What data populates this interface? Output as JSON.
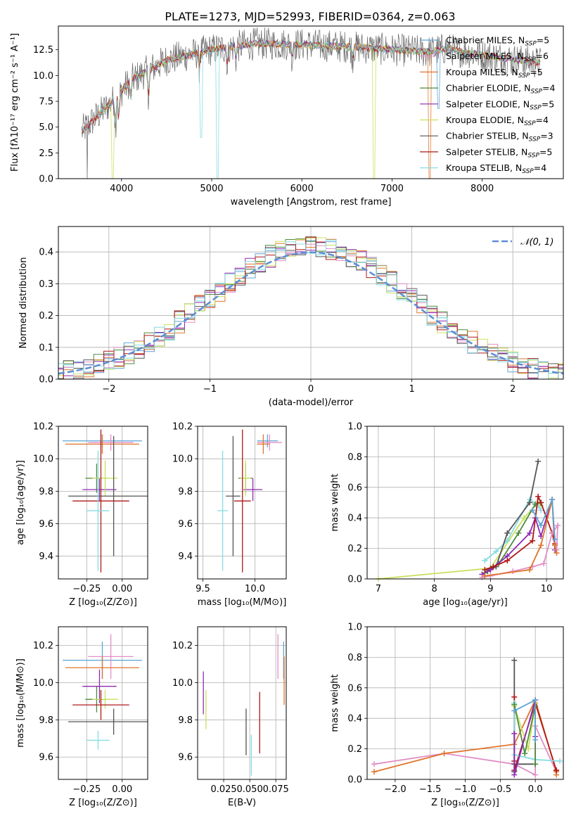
{
  "figure_title": "PLATE=1273, MJD=52993, FIBERID=0364, z=0.063",
  "chart_data": [
    {
      "id": "spectrum",
      "type": "line",
      "xlabel": "wavelength [Angstrom, rest frame]",
      "ylabel": "Flux [fλ10⁻¹⁷ erg cm⁻² s⁻¹ A⁻¹]",
      "xlim": [
        3300,
        8900
      ],
      "ylim": [
        0,
        14.8
      ],
      "xticks": [
        4000,
        5000,
        6000,
        7000,
        8000
      ],
      "xtick_labels": [
        "4000",
        "5000",
        "6000",
        "7000",
        "8000"
      ],
      "yticks": [
        0,
        2.5,
        5,
        7.5,
        10,
        12.5
      ],
      "ytick_labels": [
        "0.0",
        "2.5",
        "5.0",
        "7.5",
        "10.0",
        "12.5"
      ],
      "grid": false,
      "legend_position": "right",
      "continuum": {
        "x": [
          3550,
          3900,
          4100,
          4500,
          5000,
          5500,
          6000,
          6500,
          7000,
          7400,
          7600,
          8000,
          8300,
          8650
        ],
        "y": [
          4.5,
          7.5,
          9.5,
          11.5,
          12.5,
          13.1,
          13.0,
          12.8,
          12.5,
          12.3,
          12.6,
          12.0,
          11.6,
          11.2
        ]
      },
      "series": [
        {
          "legend": "Chabrier MILES, N",
          "legend_sub": "SSP",
          "legend_tail": "=5",
          "color": "#5da5d6"
        },
        {
          "legend": "Salpeter MILES, N",
          "legend_sub": "SSP",
          "legend_tail": "=6",
          "color": "#e18ec5"
        },
        {
          "legend": "Kroupa MILES, N",
          "legend_sub": "SSP",
          "legend_tail": "=5",
          "color": "#e0742d"
        },
        {
          "legend": "Chabrier ELODIE, N",
          "legend_sub": "SSP",
          "legend_tail": "=4",
          "color": "#4f8a3e"
        },
        {
          "legend": "Salpeter ELODIE, N",
          "legend_sub": "SSP",
          "legend_tail": "=5",
          "color": "#8e2ab2"
        },
        {
          "legend": "Kroupa ELODIE, N",
          "legend_sub": "SSP",
          "legend_tail": "=4",
          "color": "#c8e05c"
        },
        {
          "legend": "Chabrier STELIB, N",
          "legend_sub": "SSP",
          "legend_tail": "=3",
          "color": "#555555"
        },
        {
          "legend": "Salpeter STELIB, N",
          "legend_sub": "SSP",
          "legend_tail": "=5",
          "color": "#b01818"
        },
        {
          "legend": "Kroupa STELIB, N",
          "legend_sub": "SSP",
          "legend_tail": "=4",
          "color": "#86dce0"
        }
      ]
    },
    {
      "id": "residual_distribution",
      "type": "line",
      "xlabel": "(data-model)/error",
      "ylabel": "Normed distribution",
      "xlim": [
        -2.5,
        2.5
      ],
      "ylim": [
        0,
        0.48
      ],
      "xticks": [
        -2,
        -1,
        0,
        1,
        2
      ],
      "xtick_labels": [
        "−2",
        "−1",
        "0",
        "1",
        "2"
      ],
      "yticks": [
        0,
        0.1,
        0.2,
        0.3,
        0.4
      ],
      "ytick_labels": [
        "0.0",
        "0.1",
        "0.2",
        "0.3",
        "0.4"
      ],
      "grid": true,
      "legend_position": "top-right",
      "reference_label": "𝒩(0, 1)",
      "reference_color": "#5b8ed6"
    },
    {
      "id": "age_vs_Z",
      "type": "scatter",
      "xlabel": "Z [log₁₀(Z/Z⊙)]",
      "ylabel": "age  [log₁₀(age/yr)]",
      "xlim": [
        -0.45,
        0.18
      ],
      "ylim": [
        9.26,
        10.2
      ],
      "xticks": [
        -0.25,
        0
      ],
      "xtick_labels": [
        "−0.25",
        "0.00"
      ],
      "yticks": [
        9.4,
        9.6,
        9.8,
        10.0,
        10.2
      ],
      "ytick_labels": [
        "9.4",
        "9.6",
        "9.8",
        "10.0",
        "10.2"
      ],
      "grid": true,
      "points": [
        {
          "color": "#5da5d6",
          "x": -0.14,
          "xerr": 0.28,
          "y": 10.11,
          "yerr": 0.04
        },
        {
          "color": "#e18ec5",
          "x": -0.08,
          "xerr": 0.16,
          "y": 10.1,
          "yerr": 0.05
        },
        {
          "color": "#e0742d",
          "x": -0.14,
          "xerr": 0.26,
          "y": 10.09,
          "yerr": 0.06
        },
        {
          "color": "#4f8a3e",
          "x": -0.18,
          "xerr": 0.08,
          "y": 9.88,
          "yerr": 0.09
        },
        {
          "color": "#8e2ab2",
          "x": -0.16,
          "xerr": 0.12,
          "y": 9.81,
          "yerr": 0.07
        },
        {
          "color": "#c8e05c",
          "x": -0.12,
          "xerr": 0.09,
          "y": 9.88,
          "yerr": 0.11
        },
        {
          "color": "#555555",
          "x": -0.06,
          "xerr": 0.32,
          "y": 9.77,
          "yerr": 0.37
        },
        {
          "color": "#b01818",
          "x": -0.15,
          "xerr": 0.2,
          "y": 9.74,
          "yerr": 0.44
        },
        {
          "color": "#86dce0",
          "x": -0.17,
          "xerr": 0.08,
          "y": 9.68,
          "yerr": 0.37
        }
      ]
    },
    {
      "id": "age_vs_mass",
      "type": "scatter",
      "xlabel": "mass [log₁₀(M/M⊙)]",
      "ylabel": "",
      "xlim": [
        9.45,
        10.3
      ],
      "ylim": [
        9.26,
        10.2
      ],
      "xticks": [
        9.5,
        10.0
      ],
      "xtick_labels": [
        "9.5",
        "10.0"
      ],
      "yticks": [
        9.4,
        9.6,
        9.8,
        10.0,
        10.2
      ],
      "ytick_labels": [
        "9.4",
        "9.6",
        "9.8",
        "10.0",
        "10.2"
      ],
      "grid": true,
      "points": [
        {
          "color": "#5da5d6",
          "x": 10.12,
          "xerr": 0.1,
          "y": 10.11,
          "yerr": 0.04
        },
        {
          "color": "#e18ec5",
          "x": 10.14,
          "xerr": 0.12,
          "y": 10.1,
          "yerr": 0.05
        },
        {
          "color": "#e0742d",
          "x": 10.08,
          "xerr": 0.06,
          "y": 10.09,
          "yerr": 0.06
        },
        {
          "color": "#4f8a3e",
          "x": 9.91,
          "xerr": 0.07,
          "y": 9.88,
          "yerr": 0.09
        },
        {
          "color": "#8e2ab2",
          "x": 9.98,
          "xerr": 0.09,
          "y": 9.81,
          "yerr": 0.07
        },
        {
          "color": "#c8e05c",
          "x": 9.91,
          "xerr": 0.05,
          "y": 9.88,
          "yerr": 0.11
        },
        {
          "color": "#555555",
          "x": 9.79,
          "xerr": 0.07,
          "y": 9.77,
          "yerr": 0.37
        },
        {
          "color": "#b01818",
          "x": 9.88,
          "xerr": 0.08,
          "y": 9.74,
          "yerr": 0.44
        },
        {
          "color": "#86dce0",
          "x": 9.69,
          "xerr": 0.05,
          "y": 9.68,
          "yerr": 0.37
        }
      ]
    },
    {
      "id": "mass_weight_vs_age",
      "type": "line",
      "xlabel": "age  [log₁₀(age/yr)]",
      "ylabel": "mass weight",
      "xlim": [
        6.8,
        10.3
      ],
      "ylim": [
        0,
        1.0
      ],
      "xticks": [
        7,
        8,
        9,
        10
      ],
      "xtick_labels": [
        "7",
        "8",
        "9",
        "10"
      ],
      "yticks": [
        0,
        0.2,
        0.4,
        0.6,
        0.8,
        1.0
      ],
      "ytick_labels": [
        "0.0",
        "0.2",
        "0.4",
        "0.6",
        "0.8",
        "1.0"
      ],
      "grid": true,
      "series": [
        {
          "color": "#c8e05c",
          "x": [
            7.0,
            9.0,
            9.6,
            9.85,
            9.9
          ],
          "y": [
            0.0,
            0.07,
            0.4,
            0.5,
            0.48
          ]
        },
        {
          "color": "#86dce0",
          "x": [
            8.9,
            9.1,
            9.3,
            9.7,
            9.85,
            9.9
          ],
          "y": [
            0.12,
            0.18,
            0.25,
            0.52,
            0.48,
            0.45
          ]
        },
        {
          "color": "#555555",
          "x": [
            8.95,
            9.1,
            9.3,
            9.7,
            9.85
          ],
          "y": [
            0.05,
            0.08,
            0.3,
            0.5,
            0.77
          ]
        },
        {
          "color": "#4f8a3e",
          "x": [
            8.9,
            9.0,
            9.15,
            9.5,
            9.8,
            9.9
          ],
          "y": [
            0.04,
            0.07,
            0.1,
            0.3,
            0.49,
            0.5
          ]
        },
        {
          "color": "#8e2ab2",
          "x": [
            8.85,
            9.0,
            9.3,
            9.7,
            9.8,
            9.9,
            10.1,
            10.15
          ],
          "y": [
            0.03,
            0.06,
            0.15,
            0.3,
            0.4,
            0.28,
            0.52,
            0.19
          ]
        },
        {
          "color": "#b01818",
          "x": [
            8.9,
            9.05,
            9.3,
            9.75,
            9.85,
            9.9,
            10.1,
            10.15
          ],
          "y": [
            0.06,
            0.08,
            0.12,
            0.25,
            0.54,
            0.5,
            0.3,
            0.23
          ]
        },
        {
          "color": "#e18ec5",
          "x": [
            8.85,
            9.0,
            9.4,
            9.75,
            9.95,
            10.1,
            10.2,
            10.18
          ],
          "y": [
            0.01,
            0.02,
            0.05,
            0.08,
            0.1,
            0.3,
            0.35,
            0.19
          ]
        },
        {
          "color": "#e0742d",
          "x": [
            8.9,
            9.7,
            9.9,
            10.1,
            10.15,
            10.18
          ],
          "y": [
            0.02,
            0.06,
            0.22,
            0.52,
            0.22,
            0.17
          ]
        },
        {
          "color": "#5da5d6",
          "x": [
            9.75,
            9.9,
            10.1,
            10.15
          ],
          "y": [
            0.45,
            0.35,
            0.52,
            0.26
          ]
        }
      ]
    },
    {
      "id": "mass_vs_Z",
      "type": "scatter",
      "xlabel": "Z [log₁₀(Z/Z⊙)]",
      "ylabel": "mass [log₁₀(M/M⊙)]",
      "xlim": [
        -0.45,
        0.18
      ],
      "ylim": [
        9.48,
        10.3
      ],
      "xticks": [
        -0.25,
        0
      ],
      "xtick_labels": [
        "−0.25",
        "0.00"
      ],
      "yticks": [
        9.6,
        9.8,
        10.0,
        10.2
      ],
      "ytick_labels": [
        "9.6",
        "9.8",
        "10.0",
        "10.2"
      ],
      "grid": true,
      "points": [
        {
          "color": "#5da5d6",
          "x": -0.14,
          "xerr": 0.28,
          "y": 10.12,
          "yerr": 0.1
        },
        {
          "color": "#e18ec5",
          "x": -0.08,
          "xerr": 0.16,
          "y": 10.14,
          "yerr": 0.12
        },
        {
          "color": "#e0742d",
          "x": -0.14,
          "xerr": 0.26,
          "y": 10.08,
          "yerr": 0.06
        },
        {
          "color": "#4f8a3e",
          "x": -0.18,
          "xerr": 0.08,
          "y": 9.91,
          "yerr": 0.07
        },
        {
          "color": "#8e2ab2",
          "x": -0.16,
          "xerr": 0.12,
          "y": 9.98,
          "yerr": 0.09
        },
        {
          "color": "#c8e05c",
          "x": -0.12,
          "xerr": 0.09,
          "y": 9.91,
          "yerr": 0.05
        },
        {
          "color": "#555555",
          "x": -0.06,
          "xerr": 0.32,
          "y": 9.79,
          "yerr": 0.07
        },
        {
          "color": "#b01818",
          "x": -0.15,
          "xerr": 0.2,
          "y": 9.88,
          "yerr": 0.08
        },
        {
          "color": "#86dce0",
          "x": -0.17,
          "xerr": 0.08,
          "y": 9.69,
          "yerr": 0.05
        }
      ]
    },
    {
      "id": "mass_vs_ebv",
      "type": "scatter",
      "xlabel": "E(B-V)",
      "ylabel": "",
      "xlim": [
        0.0,
        0.085
      ],
      "ylim": [
        9.48,
        10.3
      ],
      "xticks": [
        0.025,
        0.05,
        0.075
      ],
      "xtick_labels": [
        "0.025",
        "0.050",
        "0.075"
      ],
      "yticks": [
        9.6,
        9.8,
        10.0,
        10.2
      ],
      "ytick_labels": [
        "9.6",
        "9.8",
        "10.0",
        "10.2"
      ],
      "grid": true,
      "points": [
        {
          "color": "#5da5d6",
          "x": 0.0825,
          "xerr": 0,
          "y": 10.12,
          "yerr": 0.1
        },
        {
          "color": "#e18ec5",
          "x": 0.077,
          "xerr": 0,
          "y": 10.14,
          "yerr": 0.12
        },
        {
          "color": "#e0742d",
          "x": 0.083,
          "xerr": 0,
          "y": 10.01,
          "yerr": 0.13
        },
        {
          "color": "#8e2ab2",
          "x": 0.0055,
          "xerr": 0,
          "y": 9.945,
          "yerr": 0.115
        },
        {
          "color": "#c8e05c",
          "x": 0.008,
          "xerr": 0,
          "y": 9.855,
          "yerr": 0.105
        },
        {
          "color": "#555555",
          "x": 0.0465,
          "xerr": 0,
          "y": 9.735,
          "yerr": 0.125
        },
        {
          "color": "#86dce0",
          "x": 0.0515,
          "xerr": 0,
          "y": 9.61,
          "yerr": 0.11
        },
        {
          "color": "#b01818",
          "x": 0.0595,
          "xerr": 0,
          "y": 9.785,
          "yerr": 0.165
        }
      ]
    },
    {
      "id": "mass_weight_vs_Z",
      "type": "line",
      "xlabel": "Z [log₁₀(Z/Z⊙)]",
      "ylabel": "mass weight",
      "xlim": [
        -2.4,
        0.4
      ],
      "ylim": [
        0,
        1.0
      ],
      "xticks": [
        -2.0,
        -1.5,
        -1.0,
        -0.5,
        0.0
      ],
      "xtick_labels": [
        "−2.0",
        "−1.5",
        "−1.0",
        "−0.5",
        "0.0"
      ],
      "yticks": [
        0,
        0.2,
        0.4,
        0.6,
        0.8,
        1.0
      ],
      "ytick_labels": [
        "0.0",
        "0.2",
        "0.4",
        "0.6",
        "0.8",
        "1.0"
      ],
      "grid": true,
      "series": [
        {
          "color": "#e18ec5",
          "x": [
            -2.3,
            -1.3,
            -0.3,
            0.0,
            0.0,
            0.3
          ],
          "y": [
            0.1,
            0.17,
            0.1,
            0.03,
            0.35,
            0.05
          ]
        },
        {
          "color": "#e0742d",
          "x": [
            -2.3,
            -1.3,
            -0.3,
            0.0,
            0.3,
            0.3
          ],
          "y": [
            0.05,
            0.17,
            0.23,
            0.52,
            0.05,
            0.03
          ]
        },
        {
          "color": "#555555",
          "x": [
            -0.3,
            -0.3,
            -0.3,
            0.0
          ],
          "y": [
            0.78,
            0.05,
            0.1,
            0.1
          ]
        },
        {
          "color": "#b01818",
          "x": [
            -0.3,
            -0.3,
            -0.3,
            0.0,
            0.3,
            0.3
          ],
          "y": [
            0.54,
            0.12,
            0.06,
            0.5,
            0.06,
            0.06
          ]
        },
        {
          "color": "#86dce0",
          "x": [
            -0.3,
            -0.3,
            0.0,
            0.35
          ],
          "y": [
            0.5,
            0.16,
            0.13,
            0.12
          ]
        },
        {
          "color": "#c8e05c",
          "x": [
            -0.3,
            -0.1,
            0.0,
            0.0
          ],
          "y": [
            0.48,
            0.2,
            0.5,
            0.4
          ]
        },
        {
          "color": "#4f8a3e",
          "x": [
            -0.3,
            -0.15,
            0.0,
            0.0
          ],
          "y": [
            0.49,
            0.17,
            0.48,
            0.1
          ]
        },
        {
          "color": "#8e2ab2",
          "x": [
            -0.3,
            -0.3,
            0.0,
            0.0
          ],
          "y": [
            0.3,
            0.03,
            0.52,
            0.28
          ]
        },
        {
          "color": "#5da5d6",
          "x": [
            -0.3,
            0.0,
            0.0
          ],
          "y": [
            0.45,
            0.52,
            0.26
          ]
        }
      ]
    }
  ]
}
